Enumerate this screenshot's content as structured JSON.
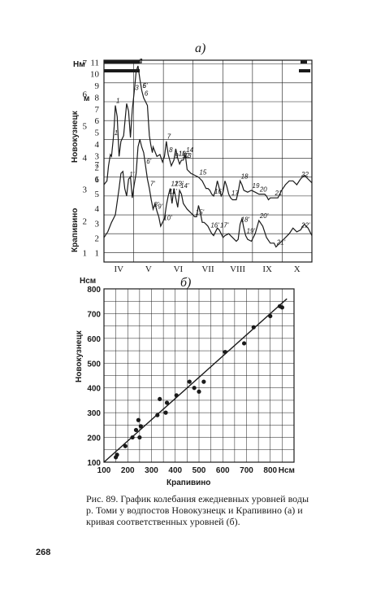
{
  "chart_data": [
    {
      "type": "line",
      "panel_label": "а)",
      "y_scale_label": "Нм",
      "ylabel_top": "Новокузнецк",
      "ylabel_bottom": "Крапивино",
      "scale_left_nm": [
        "1",
        "2",
        "3",
        "4",
        "5",
        "6",
        "7"
      ],
      "scale_left_top": [
        "1",
        "2",
        "3",
        "4",
        "5",
        "6",
        "7",
        "8",
        "9",
        "10",
        "11"
      ],
      "scale_left_top_unit": "м",
      "scale_left_bottom": [
        "1",
        "2",
        "3",
        "4",
        "5",
        "6",
        "7"
      ],
      "months": [
        "IV",
        "V",
        "VI",
        "VII",
        "VIII",
        "IX",
        "X"
      ],
      "series": [
        {
          "name": "Новокузнецк",
          "points": [
            [
              0,
              4.6
            ],
            [
              0.08,
              4.8
            ],
            [
              0.12,
              5.6
            ],
            [
              0.17,
              6.2
            ],
            [
              0.2,
              6.1
            ],
            [
              0.25,
              7.1
            ],
            [
              0.27,
              7.7
            ],
            [
              0.3,
              8.8
            ],
            [
              0.35,
              8.2
            ],
            [
              0.4,
              6.1
            ],
            [
              0.45,
              6.9
            ],
            [
              0.52,
              7.2
            ],
            [
              0.6,
              8.9
            ],
            [
              0.65,
              8.5
            ],
            [
              0.7,
              7.1
            ],
            [
              0.75,
              8.6
            ],
            [
              0.8,
              9.5
            ],
            [
              0.85,
              10.6
            ],
            [
              0.9,
              10.9
            ],
            [
              0.95,
              10.2
            ],
            [
              1.0,
              9.6
            ],
            [
              1.05,
              9.2
            ],
            [
              1.1,
              9.0
            ],
            [
              1.15,
              8.8
            ],
            [
              1.2,
              7.2
            ],
            [
              1.24,
              6.7
            ],
            [
              1.28,
              6.3
            ],
            [
              1.3,
              6.6
            ],
            [
              1.4,
              6.1
            ],
            [
              1.48,
              6.2
            ],
            [
              1.55,
              5.8
            ],
            [
              1.6,
              6.1
            ],
            [
              1.65,
              6.9
            ],
            [
              1.7,
              6.2
            ],
            [
              1.78,
              5.6
            ],
            [
              1.85,
              5.9
            ],
            [
              1.9,
              6.5
            ],
            [
              1.95,
              6.0
            ],
            [
              2.0,
              5.7
            ],
            [
              2.05,
              5.9
            ],
            [
              2.1,
              5.9
            ],
            [
              2.15,
              6.2
            ],
            [
              2.2,
              5.4
            ],
            [
              2.3,
              5.2
            ],
            [
              2.4,
              5.1
            ],
            [
              2.5,
              5.0
            ],
            [
              2.55,
              4.9
            ],
            [
              2.6,
              4.8
            ],
            [
              2.65,
              4.6
            ],
            [
              2.7,
              4.4
            ],
            [
              2.75,
              4.4
            ],
            [
              2.8,
              4.3
            ],
            [
              2.85,
              4.1
            ],
            [
              2.9,
              4.0
            ],
            [
              2.95,
              4.3
            ],
            [
              3.0,
              4.8
            ],
            [
              3.05,
              4.4
            ],
            [
              3.1,
              4.0
            ],
            [
              3.15,
              4.2
            ],
            [
              3.2,
              4.8
            ],
            [
              3.25,
              4.5
            ],
            [
              3.3,
              4.1
            ],
            [
              3.35,
              3.9
            ],
            [
              3.4,
              3.8
            ],
            [
              3.45,
              3.8
            ],
            [
              3.5,
              3.8
            ],
            [
              3.55,
              4.2
            ],
            [
              3.6,
              4.8
            ],
            [
              3.65,
              4.6
            ],
            [
              3.7,
              4.3
            ],
            [
              3.8,
              4.2
            ],
            [
              3.9,
              4.3
            ],
            [
              4.0,
              4.2
            ],
            [
              4.1,
              4.1
            ],
            [
              4.2,
              4.1
            ],
            [
              4.25,
              4.1
            ],
            [
              4.3,
              4.0
            ],
            [
              4.35,
              3.8
            ],
            [
              4.4,
              3.9
            ],
            [
              4.5,
              3.9
            ],
            [
              4.6,
              3.9
            ],
            [
              4.7,
              4.3
            ],
            [
              4.8,
              4.6
            ],
            [
              4.9,
              4.8
            ],
            [
              5.0,
              4.8
            ],
            [
              5.1,
              4.6
            ],
            [
              5.2,
              4.9
            ],
            [
              5.3,
              5.1
            ],
            [
              5.4,
              4.9
            ],
            [
              5.5,
              4.7
            ]
          ],
          "peak_labels": [
            [
              "1",
              0.25
            ],
            [
              "1",
              0.3
            ],
            [
              "2",
              0.9
            ],
            [
              "3",
              0.8
            ],
            [
              "4",
              0.92
            ],
            [
              "5",
              1.0
            ],
            [
              "6",
              1.05
            ],
            [
              "6'",
              0.98
            ],
            [
              "7",
              1.65
            ],
            [
              "8",
              1.72
            ],
            [
              "9",
              1.85
            ],
            [
              "10",
              1.95
            ],
            [
              "11",
              1.95
            ],
            [
              "12",
              2.05
            ],
            [
              "13",
              2.1
            ],
            [
              "14",
              2.15
            ],
            [
              "15",
              2.5
            ],
            [
              "16",
              2.9
            ],
            [
              "17",
              3.35
            ],
            [
              "18",
              3.6
            ],
            [
              "19",
              3.85
            ],
            [
              "20",
              4.1
            ],
            [
              "21",
              4.55
            ],
            [
              "22",
              5.2
            ]
          ]
        },
        {
          "name": "Крапивино",
          "points": [
            [
              0,
              1.8
            ],
            [
              0.1,
              2.1
            ],
            [
              0.2,
              2.6
            ],
            [
              0.3,
              3.0
            ],
            [
              0.4,
              4.4
            ],
            [
              0.45,
              5.2
            ],
            [
              0.5,
              5.3
            ],
            [
              0.55,
              4.4
            ],
            [
              0.6,
              4.0
            ],
            [
              0.65,
              4.9
            ],
            [
              0.7,
              5.0
            ],
            [
              0.75,
              3.9
            ],
            [
              0.8,
              4.6
            ],
            [
              0.85,
              5.2
            ],
            [
              0.9,
              6.6
            ],
            [
              0.95,
              7.0
            ],
            [
              1.0,
              6.6
            ],
            [
              1.05,
              6.3
            ],
            [
              1.1,
              5.6
            ],
            [
              1.15,
              4.9
            ],
            [
              1.2,
              4.4
            ],
            [
              1.25,
              3.8
            ],
            [
              1.3,
              3.3
            ],
            [
              1.35,
              3.6
            ],
            [
              1.4,
              3.2
            ],
            [
              1.45,
              2.9
            ],
            [
              1.5,
              2.4
            ],
            [
              1.55,
              2.6
            ],
            [
              1.6,
              2.8
            ],
            [
              1.65,
              3.5
            ],
            [
              1.7,
              4.0
            ],
            [
              1.75,
              4.4
            ],
            [
              1.8,
              3.6
            ],
            [
              1.85,
              4.4
            ],
            [
              1.9,
              3.9
            ],
            [
              1.95,
              3.4
            ],
            [
              2.0,
              4.3
            ],
            [
              2.05,
              4.1
            ],
            [
              2.1,
              3.6
            ],
            [
              2.2,
              3.3
            ],
            [
              2.3,
              3.1
            ],
            [
              2.4,
              2.9
            ],
            [
              2.45,
              2.9
            ],
            [
              2.5,
              3.5
            ],
            [
              2.55,
              3.1
            ],
            [
              2.6,
              2.6
            ],
            [
              2.65,
              2.6
            ],
            [
              2.7,
              2.5
            ],
            [
              2.75,
              2.4
            ],
            [
              2.8,
              2.2
            ],
            [
              2.85,
              2.0
            ],
            [
              2.9,
              1.9
            ],
            [
              2.95,
              2.1
            ],
            [
              3.0,
              2.3
            ],
            [
              3.05,
              2.2
            ],
            [
              3.1,
              2.0
            ],
            [
              3.15,
              1.8
            ],
            [
              3.2,
              1.9
            ],
            [
              3.3,
              2.0
            ],
            [
              3.4,
              1.8
            ],
            [
              3.5,
              1.6
            ],
            [
              3.55,
              1.7
            ],
            [
              3.6,
              2.5
            ],
            [
              3.65,
              2.8
            ],
            [
              3.7,
              2.3
            ],
            [
              3.75,
              1.9
            ],
            [
              3.8,
              1.7
            ],
            [
              3.9,
              1.6
            ],
            [
              4.0,
              2.0
            ],
            [
              4.1,
              2.7
            ],
            [
              4.2,
              2.4
            ],
            [
              4.3,
              1.8
            ],
            [
              4.4,
              1.5
            ],
            [
              4.5,
              1.5
            ],
            [
              4.55,
              1.3
            ],
            [
              4.6,
              1.4
            ],
            [
              4.7,
              1.6
            ],
            [
              4.8,
              1.8
            ],
            [
              4.9,
              2.0
            ],
            [
              5.0,
              2.3
            ],
            [
              5.1,
              2.1
            ],
            [
              5.2,
              2.2
            ],
            [
              5.3,
              2.5
            ],
            [
              5.4,
              2.3
            ],
            [
              5.5,
              1.9
            ]
          ],
          "peak_labels": [
            [
              "1'",
              0.65
            ],
            [
              "6'",
              1.1
            ],
            [
              "7'",
              1.2
            ],
            [
              "8'",
              1.3
            ],
            [
              "9'",
              1.4
            ],
            [
              "10'",
              1.55
            ],
            [
              "11'",
              1.7
            ],
            [
              "12'",
              1.75
            ],
            [
              "13'",
              1.85
            ],
            [
              "14'",
              2.0
            ],
            [
              "15'",
              2.4
            ],
            [
              "16'",
              2.8
            ],
            [
              "17'",
              3.05
            ],
            [
              "18'",
              3.6
            ],
            [
              "19'",
              3.75
            ],
            [
              "20'",
              4.1
            ],
            [
              "21'",
              4.55
            ],
            [
              "22'",
              5.2
            ]
          ]
        }
      ]
    },
    {
      "type": "scatter",
      "panel_label": "б)",
      "ylabel": "Новокузнецк",
      "xlabel": "Крапивино",
      "y_unit": "Нсм",
      "x_unit": "Нсм",
      "xlim": [
        100,
        900
      ],
      "ylim": [
        100,
        800
      ],
      "xticks": [
        100,
        200,
        300,
        400,
        500,
        600,
        700,
        800
      ],
      "yticks": [
        100,
        200,
        300,
        400,
        500,
        600,
        700,
        800
      ],
      "points": [
        [
          150,
          120
        ],
        [
          155,
          130
        ],
        [
          190,
          165
        ],
        [
          220,
          200
        ],
        [
          235,
          230
        ],
        [
          245,
          270
        ],
        [
          250,
          200
        ],
        [
          255,
          245
        ],
        [
          325,
          290
        ],
        [
          335,
          355
        ],
        [
          360,
          300
        ],
        [
          365,
          340
        ],
        [
          405,
          370
        ],
        [
          460,
          425
        ],
        [
          480,
          400
        ],
        [
          500,
          385
        ],
        [
          520,
          425
        ],
        [
          610,
          545
        ],
        [
          690,
          580
        ],
        [
          730,
          645
        ],
        [
          800,
          690
        ],
        [
          840,
          730
        ],
        [
          850,
          725
        ]
      ],
      "fit_line": [
        [
          100,
          100
        ],
        [
          870,
          760
        ]
      ]
    }
  ],
  "caption": {
    "line1": "Рис. 89. График колебания ежедневных уровней воды",
    "line2": "р. Томи у водпостов Новокузнецк и Крапивино (а) и",
    "line3": "кривая соответственных уровней (б)."
  },
  "page_number": "268"
}
